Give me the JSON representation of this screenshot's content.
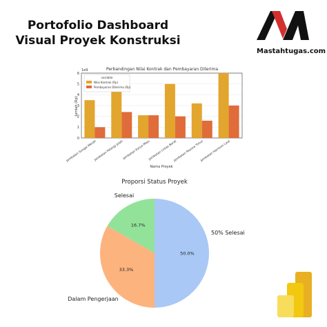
{
  "header": {
    "title_line1": "Portofolio Dashboard",
    "title_line2": "Visual Proyek Konstruksi",
    "brand_url": "Mastahtugas.com"
  },
  "colors": {
    "bar_contract": "#E2A52D",
    "bar_payment": "#E06C3A",
    "pie_selesai": "#93E29A",
    "pie_half": "#FDB37E",
    "pie_dalam": "#A9C8F5",
    "brand_red": "#D32F2F"
  },
  "chart_data": [
    {
      "type": "bar",
      "title": "Perbandingan Nilai Kontrak dan Pembayaran Diterima",
      "xlabel": "Nama Proyek",
      "ylabel": "Jumlah (Rp)",
      "y_multiplier": "1e9",
      "ylim": [
        0,
        6
      ],
      "yticks": [
        "0",
        "1",
        "2",
        "3",
        "4",
        "5",
        "6"
      ],
      "grid": true,
      "legend_title": "variable",
      "legend_position": "top-left",
      "categories": [
        "Jembatan Sungai Merah",
        "Jembatan Pelangi Jolah",
        "Jembatan Karya Maju",
        "Jembatan Lintas Barat",
        "Jembatan Pesona Timur",
        "Jembatan Harmoni Laut"
      ],
      "series": [
        {
          "name": "Nilai Kontrak (Rp)",
          "values": [
            3.5,
            4.8,
            2.1,
            5.0,
            3.2,
            6.0
          ]
        },
        {
          "name": "Pembayaran Diterima (Rp)",
          "values": [
            1.0,
            2.4,
            2.1,
            2.0,
            1.6,
            3.0
          ]
        }
      ]
    },
    {
      "type": "pie",
      "title": "Proporsi Status Proyek",
      "slices": [
        {
          "label": "Selesai",
          "value": 16.7,
          "pct_label": "16.7%"
        },
        {
          "label": "50% Selesai",
          "value": 33.3,
          "pct_label": "33.3%"
        },
        {
          "label": "Dalam Pengerjaan",
          "value": 50.0,
          "pct_label": "50.0%"
        }
      ]
    }
  ]
}
